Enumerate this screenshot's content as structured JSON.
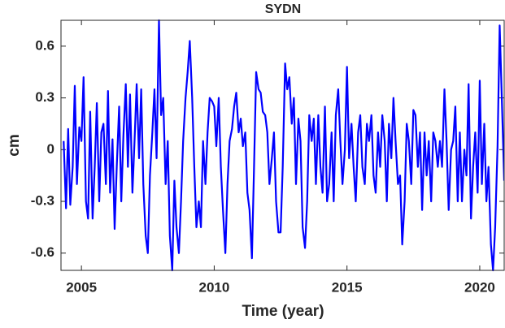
{
  "chart_data": {
    "type": "line",
    "title": "SYDN",
    "xlabel": "Time (year)",
    "ylabel": "cm",
    "color": "#0000ff",
    "x": [
      2004.33,
      2004.42,
      2004.5,
      2004.58,
      2004.67,
      2004.75,
      2004.83,
      2004.92,
      2005.0,
      2005.08,
      2005.17,
      2005.25,
      2005.33,
      2005.42,
      2005.5,
      2005.58,
      2005.67,
      2005.75,
      2005.83,
      2005.92,
      2006.0,
      2006.08,
      2006.17,
      2006.25,
      2006.33,
      2006.42,
      2006.5,
      2006.58,
      2006.67,
      2006.75,
      2006.83,
      2006.92,
      2007.0,
      2007.08,
      2007.17,
      2007.25,
      2007.33,
      2007.42,
      2007.5,
      2007.58,
      2007.67,
      2007.75,
      2007.83,
      2007.92,
      2008.0,
      2008.08,
      2008.17,
      2008.25,
      2008.33,
      2008.42,
      2008.5,
      2008.58,
      2008.67,
      2008.75,
      2008.83,
      2008.92,
      2009.0,
      2009.08,
      2009.17,
      2009.25,
      2009.33,
      2009.42,
      2009.5,
      2009.58,
      2009.67,
      2009.75,
      2009.83,
      2009.92,
      2010.0,
      2010.08,
      2010.17,
      2010.25,
      2010.33,
      2010.42,
      2010.5,
      2010.58,
      2010.67,
      2010.75,
      2010.83,
      2010.92,
      2011.0,
      2011.08,
      2011.17,
      2011.25,
      2011.33,
      2011.42,
      2011.5,
      2011.58,
      2011.67,
      2011.75,
      2011.83,
      2011.92,
      2012.0,
      2012.08,
      2012.17,
      2012.25,
      2012.33,
      2012.42,
      2012.5,
      2012.58,
      2012.67,
      2012.75,
      2012.83,
      2012.92,
      2013.0,
      2013.08,
      2013.17,
      2013.25,
      2013.33,
      2013.42,
      2013.5,
      2013.58,
      2013.67,
      2013.75,
      2013.83,
      2013.92,
      2014.0,
      2014.08,
      2014.17,
      2014.25,
      2014.33,
      2014.42,
      2014.5,
      2014.58,
      2014.67,
      2014.75,
      2014.83,
      2014.92,
      2015.0,
      2015.08,
      2015.17,
      2015.25,
      2015.33,
      2015.42,
      2015.5,
      2015.58,
      2015.67,
      2015.75,
      2015.83,
      2015.92,
      2016.0,
      2016.08,
      2016.17,
      2016.25,
      2016.33,
      2016.42,
      2016.5,
      2016.58,
      2016.67,
      2016.75,
      2016.83,
      2016.92,
      2017.0,
      2017.08,
      2017.17,
      2017.25,
      2017.33,
      2017.42,
      2017.5,
      2017.58,
      2017.67,
      2017.75,
      2017.83,
      2017.92,
      2018.0,
      2018.08,
      2018.17,
      2018.25,
      2018.33,
      2018.42,
      2018.5,
      2018.58,
      2018.67,
      2018.75,
      2018.83,
      2018.92,
      2019.0,
      2019.08,
      2019.17,
      2019.25,
      2019.33,
      2019.42,
      2019.5,
      2019.58,
      2019.67,
      2019.75,
      2019.83,
      2019.92,
      2020.0,
      2020.08,
      2020.17,
      2020.25,
      2020.33,
      2020.42,
      2020.5,
      2020.58,
      2020.67,
      2020.75,
      2020.83,
      2020.92
    ],
    "values": [
      0.05,
      -0.34,
      0.12,
      -0.32,
      -0.1,
      0.37,
      -0.2,
      0.13,
      0.05,
      0.42,
      -0.3,
      -0.4,
      0.22,
      -0.4,
      -0.1,
      0.27,
      -0.3,
      0.1,
      0.15,
      -0.2,
      0.34,
      -0.25,
      0.06,
      -0.46,
      -0.1,
      0.25,
      -0.3,
      0.08,
      0.38,
      -0.1,
      0.32,
      -0.25,
      0.05,
      0.38,
      -0.05,
      0.35,
      -0.2,
      -0.5,
      -0.6,
      -0.15,
      0.1,
      0.35,
      -0.05,
      0.75,
      0.2,
      0.3,
      -0.2,
      0.05,
      -0.5,
      -0.7,
      -0.18,
      -0.45,
      -0.6,
      -0.3,
      0.05,
      0.3,
      0.45,
      0.63,
      0.3,
      -0.1,
      -0.45,
      -0.3,
      -0.45,
      0.05,
      -0.2,
      0.1,
      0.3,
      0.28,
      0.25,
      0.02,
      0.3,
      -0.1,
      -0.35,
      -0.6,
      -0.2,
      0.05,
      0.12,
      0.25,
      0.33,
      0.1,
      0.18,
      0.02,
      0.1,
      -0.25,
      -0.35,
      -0.63,
      -0.1,
      0.45,
      0.35,
      0.33,
      0.22,
      0.2,
      0.1,
      -0.2,
      -0.05,
      0.1,
      -0.3,
      -0.48,
      -0.48,
      -0.1,
      0.5,
      0.35,
      0.42,
      0.15,
      0.3,
      -0.2,
      0.18,
      0.05,
      -0.45,
      -0.57,
      -0.3,
      0.2,
      0.05,
      0.18,
      -0.2,
      0.2,
      -0.1,
      -0.25,
      0.25,
      -0.3,
      -0.2,
      0.1,
      -0.3,
      0.2,
      0.35,
      0.05,
      -0.2,
      0.0,
      0.48,
      -0.05,
      0.15,
      -0.1,
      -0.3,
      0.1,
      0.2,
      -0.1,
      -0.2,
      0.15,
      0.05,
      0.2,
      -0.15,
      -0.25,
      0.1,
      -0.1,
      0.2,
      0.05,
      -0.3,
      0.15,
      -0.05,
      0.3,
      0.05,
      -0.2,
      -0.15,
      -0.55,
      -0.3,
      0.15,
      0.05,
      -0.2,
      0.23,
      0.2,
      -0.1,
      0.1,
      -0.35,
      0.1,
      -0.15,
      0.05,
      -0.3,
      0.1,
      0.05,
      -0.1,
      0.05,
      -0.1,
      0.35,
      0.05,
      -0.35,
      0.0,
      0.05,
      0.25,
      -0.3,
      0.1,
      -0.3,
      0.0,
      -0.15,
      0.38,
      -0.4,
      -0.1,
      0.1,
      -0.25,
      0.4,
      -0.2,
      0.15,
      -0.3,
      -0.1,
      -0.55,
      -0.7,
      -0.45,
      0.02,
      0.72,
      0.3,
      -0.18
    ],
    "xlim": [
      2004.23,
      2020.92
    ],
    "xticks": [
      2005,
      2010,
      2015,
      2020
    ],
    "ylim": [
      -0.7,
      0.75
    ],
    "yticks": [
      -0.6,
      -0.3,
      0,
      0.3,
      0.6
    ],
    "grid": false
  }
}
